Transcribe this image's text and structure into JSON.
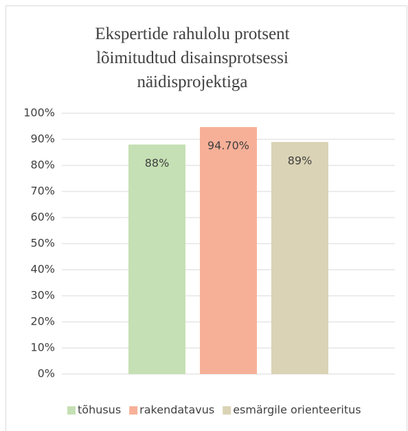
{
  "chart_data": {
    "type": "bar",
    "title": "Ekspertide rahulolu protsent lõimitudtud disainsprotsessi näidisprojektiga",
    "categories": [
      null
    ],
    "series": [
      {
        "name": "tõhusus",
        "color": "#c5e0b4",
        "values": [
          88
        ],
        "value_labels": [
          "88%"
        ]
      },
      {
        "name": "rakendatavus",
        "color": "#f7b098",
        "values": [
          94.7
        ],
        "value_labels": [
          "94.70%"
        ]
      },
      {
        "name": "esmärgile orienteeritus",
        "color": "#dbd3b5",
        "values": [
          89
        ],
        "value_labels": [
          "89%"
        ]
      }
    ],
    "ylim": [
      0,
      100
    ],
    "yticks": [
      {
        "value": 0,
        "label": "0%"
      },
      {
        "value": 10,
        "label": "10%"
      },
      {
        "value": 20,
        "label": "20%"
      },
      {
        "value": 30,
        "label": "30%"
      },
      {
        "value": 40,
        "label": "40%"
      },
      {
        "value": 50,
        "label": "50%"
      },
      {
        "value": 60,
        "label": "60%"
      },
      {
        "value": 70,
        "label": "70%"
      },
      {
        "value": 80,
        "label": "80%"
      },
      {
        "value": 90,
        "label": "90%"
      },
      {
        "value": 100,
        "label": "100%"
      }
    ],
    "grid": true,
    "legend": "bottom"
  }
}
